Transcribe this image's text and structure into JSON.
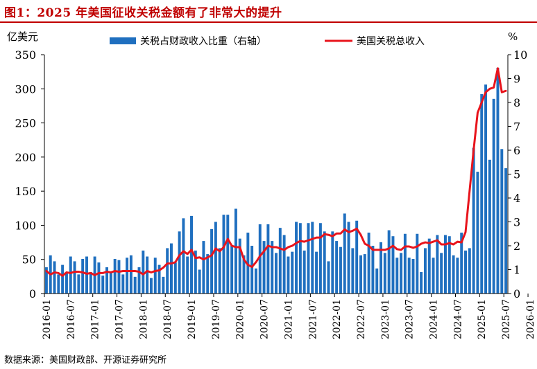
{
  "title": "图1：2025 年美国征收关税金额有了非常大的提升",
  "source": "数据来源：美国财政部、开源证券研究所",
  "chart_data": {
    "type": "bar",
    "y_left_label": "亿美元",
    "y_right_label": "%",
    "y_left_lim": [
      0,
      350
    ],
    "y_right_lim": [
      0,
      10
    ],
    "y_left_ticks": [
      0,
      50,
      100,
      150,
      200,
      250,
      300,
      350
    ],
    "y_right_ticks": [
      0,
      1,
      2,
      3,
      4,
      5,
      6,
      7,
      8,
      9,
      10
    ],
    "x_tick_labels": [
      "2016-01",
      "2016-07",
      "2017-01",
      "2017-07",
      "2018-01",
      "2018-07",
      "2019-01",
      "2019-07",
      "2020-01",
      "2020-07",
      "2021-01",
      "2021-07",
      "2022-01",
      "2022-07",
      "2023-01",
      "2023-07",
      "2024-01",
      "2024-07",
      "2025-01",
      "2025-07",
      "2026-01"
    ],
    "legend_position": "top",
    "series": [
      {
        "name": "关税占财政收入比重（右轴）",
        "type": "bar",
        "axis": "right",
        "color": "#1f6fbf",
        "values": [
          1.1,
          1.6,
          1.35,
          0.8,
          1.2,
          0.9,
          1.55,
          1.35,
          0.8,
          1.45,
          1.55,
          0.9,
          1.55,
          1.3,
          0.75,
          1.1,
          0.9,
          1.45,
          1.4,
          0.8,
          1.5,
          1.6,
          0.7,
          1.1,
          1.8,
          1.55,
          0.65,
          1.5,
          1.2,
          0.7,
          1.9,
          2.1,
          1.3,
          2.6,
          3.15,
          1.55,
          3.25,
          1.8,
          1.0,
          2.2,
          1.65,
          2.7,
          3.0,
          1.9,
          3.3,
          3.3,
          2.0,
          3.55,
          2.3,
          1.6,
          2.55,
          2.0,
          1.05,
          2.9,
          2.2,
          2.9,
          2.2,
          1.7,
          2.75,
          2.45,
          1.55,
          1.75,
          3.0,
          2.95,
          1.8,
          2.95,
          3.0,
          1.75,
          2.95,
          2.6,
          1.35,
          2.6,
          2.2,
          1.95,
          3.35,
          3.0,
          1.9,
          3.05,
          1.6,
          1.65,
          2.55,
          2.0,
          1.05,
          2.15,
          1.7,
          2.65,
          2.4,
          1.5,
          1.7,
          2.5,
          1.5,
          1.45,
          2.5,
          0.9,
          1.9,
          2.3,
          1.5,
          2.45,
          1.7,
          2.45,
          2.4,
          1.6,
          1.5,
          2.55,
          1.8,
          1.9,
          6.1,
          5.1,
          8.35,
          8.75,
          5.6,
          8.15,
          9.45,
          6.05,
          5.25
        ]
      },
      {
        "name": "美国关税总收入",
        "type": "line",
        "axis": "left",
        "color": "#e8141c",
        "values": [
          33,
          28,
          31,
          30,
          26,
          31,
          30,
          32,
          32,
          31,
          29,
          30,
          27,
          30,
          30,
          32,
          31,
          33,
          32,
          33,
          33,
          33,
          33,
          32,
          28,
          33,
          31,
          33,
          34,
          38,
          44,
          44,
          46,
          56,
          62,
          58,
          64,
          52,
          53,
          50,
          53,
          56,
          66,
          62,
          68,
          80,
          70,
          68,
          68,
          50,
          42,
          39,
          46,
          55,
          62,
          70,
          68,
          68,
          66,
          64,
          68,
          70,
          74,
          77,
          76,
          78,
          80,
          82,
          82,
          87,
          86,
          84,
          88,
          88,
          94,
          90,
          92,
          95,
          86,
          73,
          70,
          64,
          64,
          64,
          64,
          66,
          70,
          65,
          64,
          69,
          69,
          67,
          69,
          73,
          75,
          74,
          76,
          78,
          72,
          72,
          74,
          72,
          76,
          75,
          90,
          150,
          210,
          265,
          280,
          295,
          300,
          302,
          330,
          295,
          297
        ]
      }
    ]
  }
}
